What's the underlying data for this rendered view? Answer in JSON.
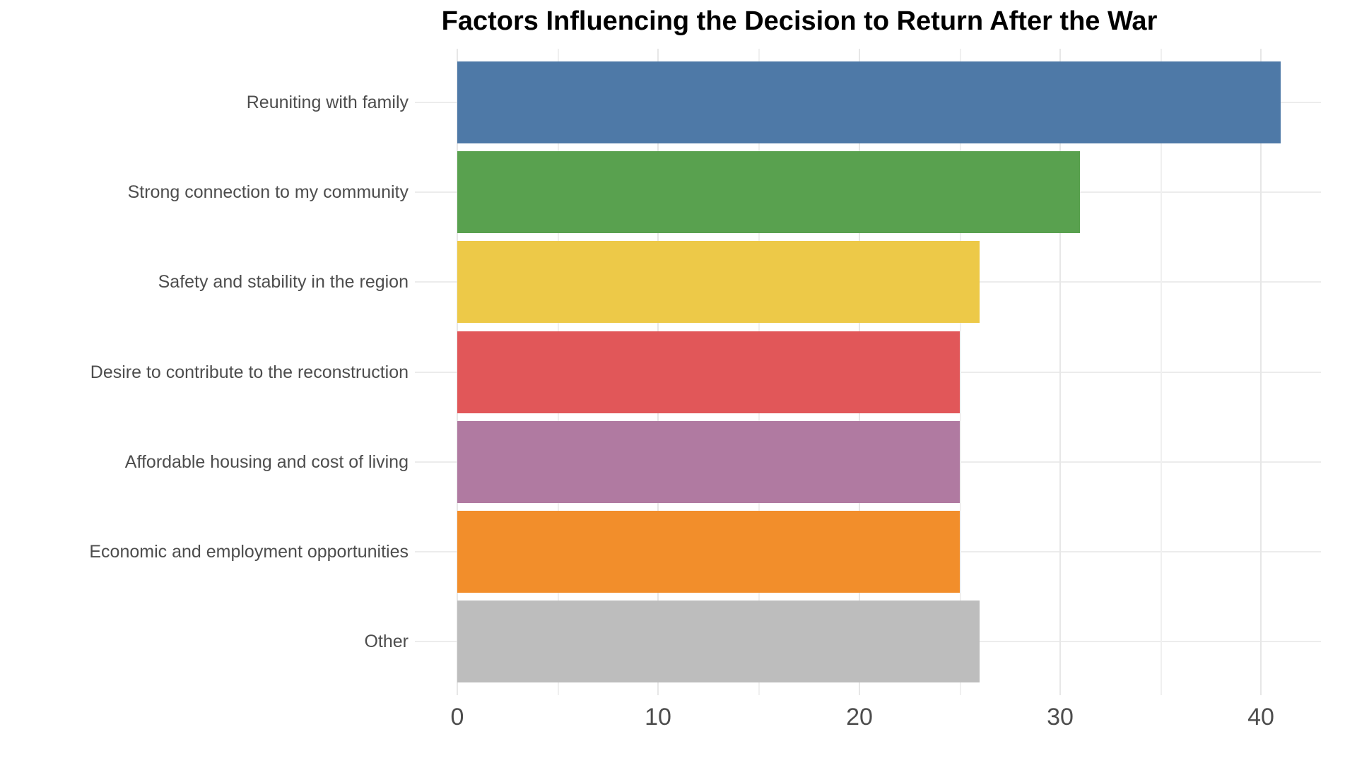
{
  "title": "Factors Influencing the Decision to Return After the War",
  "chart_data": {
    "type": "bar",
    "orientation": "horizontal",
    "title": "Factors Influencing the Decision to Return After the War",
    "xlabel": "",
    "ylabel": "",
    "categories": [
      "Reuniting with family",
      "Strong connection to my community",
      "Safety and stability in the region",
      "Desire to contribute to the reconstruction",
      "Affordable housing and cost of living",
      "Economic and employment opportunities",
      "Other"
    ],
    "values": [
      41,
      31,
      26,
      25,
      25,
      25,
      26
    ],
    "bar_colors": [
      "#4E79A7",
      "#59A14F",
      "#EDC948",
      "#E15759",
      "#B07AA1",
      "#F28E2B",
      "#BDBDBD"
    ],
    "xlim": [
      -2.1,
      43
    ],
    "x_ticks": [
      0,
      10,
      20,
      30,
      40
    ],
    "x_minor_ticks": [
      5,
      15,
      25,
      35
    ],
    "grid": true,
    "legend": false,
    "background_color": "#FFFFFF",
    "major_grid_color": "#E7E7E7",
    "minor_grid_color": "#F0F0F0",
    "category_grid_color": "#ECECEC",
    "axis_text_color": "#4D4D4D",
    "title_color": "#000000"
  }
}
